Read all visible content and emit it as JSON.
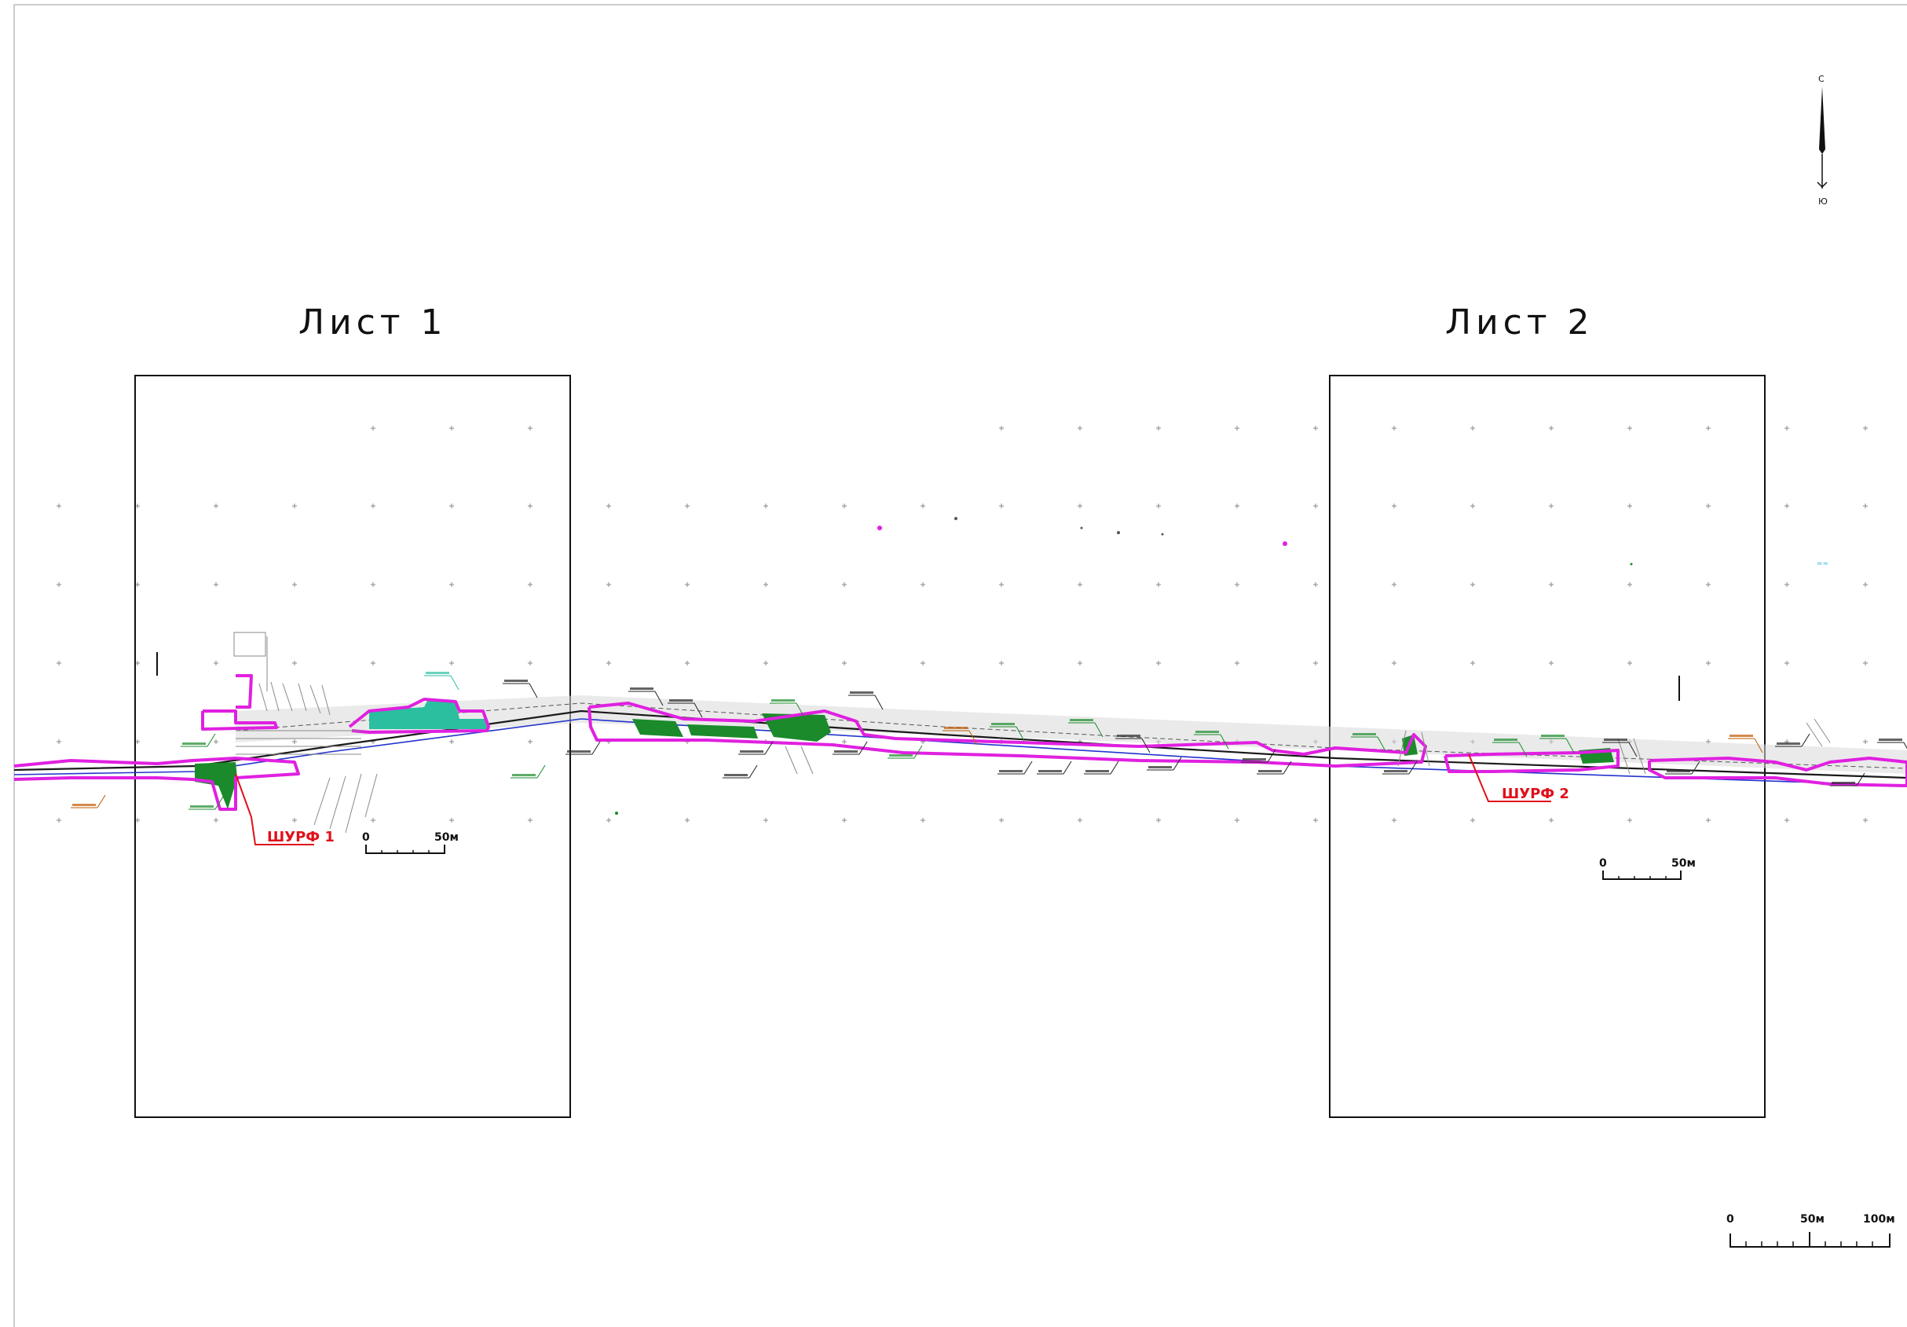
{
  "sheets": [
    {
      "title": "Лист 1",
      "marker": "ШУРФ 1",
      "scale": {
        "zero": "0",
        "end": "50м"
      }
    },
    {
      "title": "Лист 2",
      "marker": "ШУРФ 2",
      "scale": {
        "zero": "0",
        "end": "50м"
      }
    }
  ],
  "main_scale": {
    "zero": "0",
    "mid": "50м",
    "end": "100м"
  },
  "north_arrow": {
    "north": "С",
    "south": "Ю"
  },
  "colors": {
    "boundary": "#e020e0",
    "fill_dark": "#1a8a2a",
    "fill_teal": "#2bbfa0",
    "route": "#1a1a1a",
    "axis_blue": "#2233cc",
    "marker_red": "#e0101a",
    "grid": "#9a9a9a"
  }
}
